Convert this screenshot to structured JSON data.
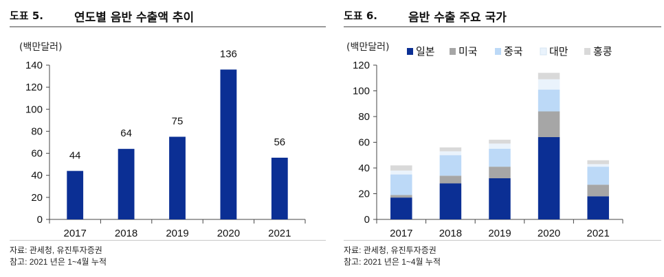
{
  "figures": [
    {
      "number": "도표 5.",
      "title": "연도별 음반 수출액 추이",
      "source": "자료: 관세청, 유진투자증권",
      "note": "참고: 2021 년은 1~4월 누적"
    },
    {
      "number": "도표 6.",
      "title": "음반 수출 주요 국가",
      "source": "자료: 관세청, 유진투자증권",
      "note": "참고: 2021 년은 1~4월 누적"
    }
  ],
  "chart_data": [
    {
      "type": "bar",
      "title": "연도별 음반 수출액 추이",
      "unit_label": "(백만달러)",
      "categories": [
        "2017",
        "2018",
        "2019",
        "2020",
        "2021"
      ],
      "values": [
        44,
        64,
        75,
        136,
        56
      ],
      "data_labels": [
        "44",
        "64",
        "75",
        "136",
        "56"
      ],
      "ylim": [
        0,
        140
      ],
      "yticks": [
        0,
        20,
        40,
        60,
        80,
        100,
        120,
        140
      ],
      "grid": false,
      "legend": "none",
      "colors": {
        "bar": "#0b2f94"
      }
    },
    {
      "type": "bar",
      "stacked": true,
      "title": "음반 수출 주요 국가",
      "unit_label": "(백만달러)",
      "categories": [
        "2017",
        "2018",
        "2019",
        "2020",
        "2021"
      ],
      "series": [
        {
          "name": "일본",
          "color": "#0b2f94",
          "values": [
            17,
            28,
            32,
            64,
            18
          ]
        },
        {
          "name": "미국",
          "color": "#a6a6a6",
          "values": [
            2,
            6,
            9,
            20,
            9
          ]
        },
        {
          "name": "중국",
          "color": "#bcd9f7",
          "values": [
            16,
            16,
            14,
            17,
            14
          ]
        },
        {
          "name": "대만",
          "color": "#eaf3fc",
          "values": [
            3,
            3,
            4,
            8,
            2
          ]
        },
        {
          "name": "홍콩",
          "color": "#d9d9d9",
          "values": [
            4,
            3,
            3,
            5,
            3
          ]
        }
      ],
      "ylim": [
        0,
        120
      ],
      "yticks": [
        0,
        20,
        40,
        60,
        80,
        100,
        120
      ],
      "grid": false,
      "legend": "top"
    }
  ]
}
